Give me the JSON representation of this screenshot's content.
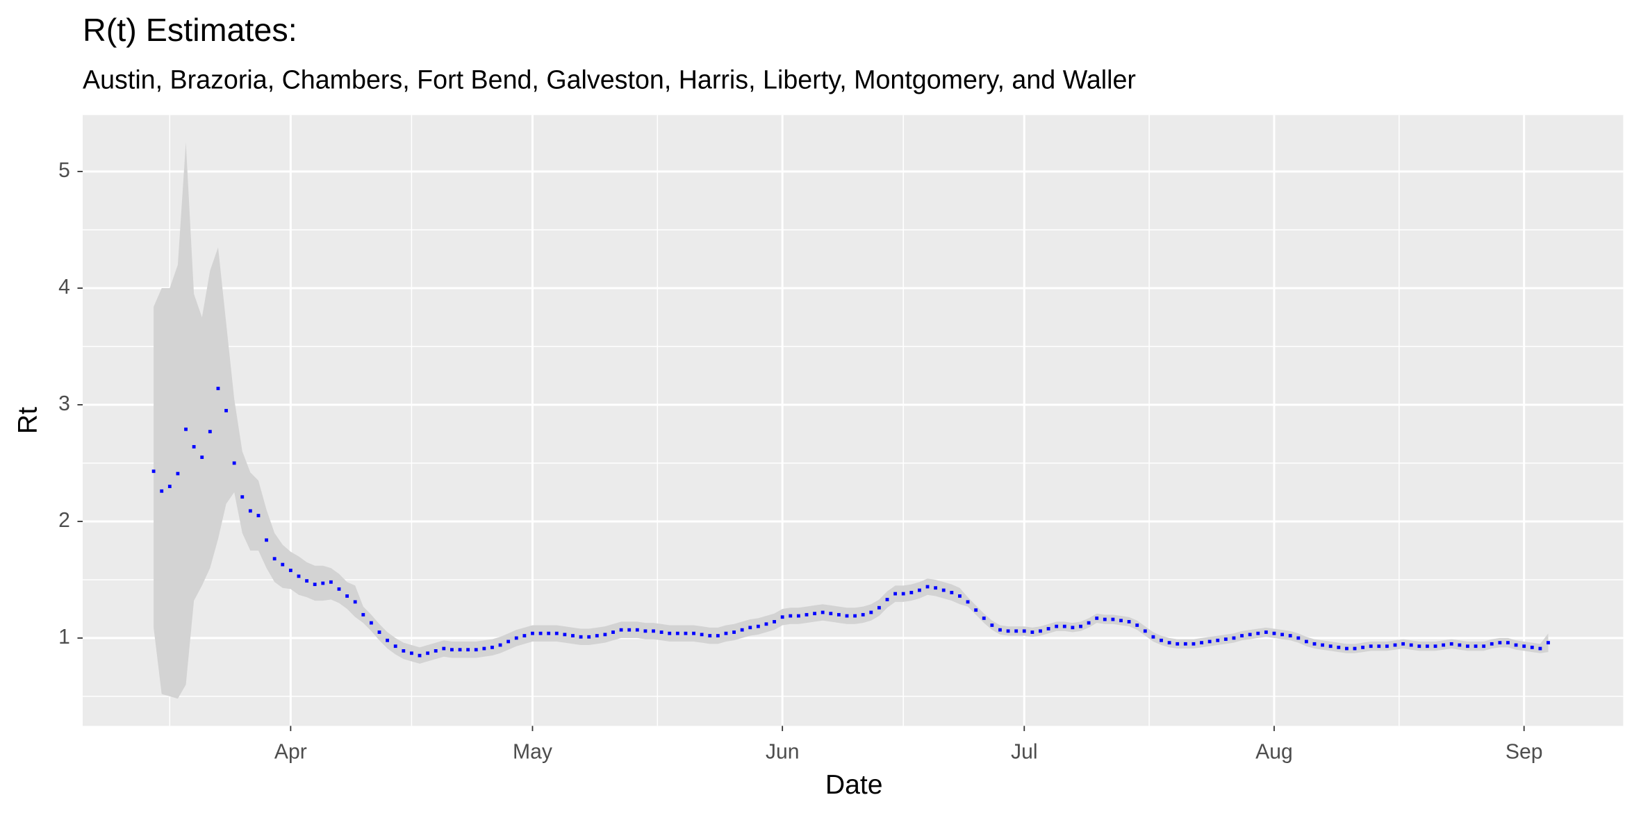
{
  "chart_data": {
    "type": "line",
    "title": "R(t) Estimates:",
    "subtitle": "Austin, Brazoria, Chambers, Fort Bend, Galveston, Harris, Liberty, Montgomery, and Waller",
    "x_label": "Date",
    "y_label": "Rt",
    "color": "#0000ff",
    "band_color": "#d3d3d3",
    "line_style": "dotted",
    "grid": true,
    "xlim": [
      66.2,
      257.3
    ],
    "xticks": [
      {
        "value": 92,
        "label": "Apr"
      },
      {
        "value": 122,
        "label": "May"
      },
      {
        "value": 153,
        "label": "Jun"
      },
      {
        "value": 183,
        "label": "Jul"
      },
      {
        "value": 214,
        "label": "Aug"
      },
      {
        "value": 245,
        "label": "Sep"
      }
    ],
    "ylim": [
      0.247,
      5.484
    ],
    "yticks": [
      1,
      2,
      3,
      4,
      5
    ],
    "x": [
      75,
      76,
      77,
      78,
      79,
      80,
      81,
      82,
      83,
      84,
      85,
      86,
      87,
      88,
      89,
      90,
      91,
      92,
      93,
      94,
      95,
      96,
      97,
      98,
      99,
      100,
      101,
      102,
      103,
      104,
      105,
      106,
      107,
      108,
      109,
      110,
      111,
      112,
      113,
      114,
      115,
      116,
      117,
      118,
      119,
      120,
      121,
      122,
      123,
      124,
      125,
      126,
      127,
      128,
      129,
      130,
      131,
      132,
      133,
      134,
      135,
      136,
      137,
      138,
      139,
      140,
      141,
      142,
      143,
      144,
      145,
      146,
      147,
      148,
      149,
      150,
      151,
      152,
      153,
      154,
      155,
      156,
      157,
      158,
      159,
      160,
      161,
      162,
      163,
      164,
      165,
      166,
      167,
      168,
      169,
      170,
      171,
      172,
      173,
      174,
      175,
      176,
      177,
      178,
      179,
      180,
      181,
      182,
      183,
      184,
      185,
      186,
      187,
      188,
      189,
      190,
      191,
      192,
      193,
      194,
      195,
      196,
      197,
      198,
      199,
      200,
      201,
      202,
      203,
      204,
      205,
      206,
      207,
      208,
      209,
      210,
      211,
      212,
      213,
      214,
      215,
      216,
      217,
      218,
      219,
      220,
      221,
      222,
      223,
      224,
      225,
      226,
      227,
      228,
      229,
      230,
      231,
      232,
      233,
      234,
      235,
      236,
      237,
      238,
      239,
      240,
      241,
      242,
      243,
      244,
      245,
      246,
      247,
      248
    ],
    "values": [
      2.43,
      2.26,
      2.3,
      2.41,
      2.79,
      2.64,
      2.55,
      2.77,
      3.14,
      2.95,
      2.5,
      2.21,
      2.09,
      2.05,
      1.84,
      1.68,
      1.63,
      1.58,
      1.53,
      1.49,
      1.46,
      1.47,
      1.48,
      1.42,
      1.36,
      1.31,
      1.2,
      1.13,
      1.05,
      0.98,
      0.93,
      0.89,
      0.87,
      0.85,
      0.87,
      0.89,
      0.91,
      0.9,
      0.9,
      0.9,
      0.9,
      0.91,
      0.92,
      0.94,
      0.97,
      1.0,
      1.02,
      1.04,
      1.04,
      1.04,
      1.04,
      1.03,
      1.02,
      1.01,
      1.01,
      1.02,
      1.03,
      1.05,
      1.07,
      1.07,
      1.07,
      1.06,
      1.06,
      1.05,
      1.04,
      1.04,
      1.04,
      1.04,
      1.03,
      1.02,
      1.02,
      1.04,
      1.05,
      1.07,
      1.09,
      1.1,
      1.12,
      1.14,
      1.18,
      1.19,
      1.19,
      1.2,
      1.21,
      1.22,
      1.21,
      1.2,
      1.19,
      1.19,
      1.2,
      1.22,
      1.26,
      1.33,
      1.38,
      1.38,
      1.39,
      1.41,
      1.44,
      1.43,
      1.41,
      1.39,
      1.36,
      1.31,
      1.24,
      1.17,
      1.11,
      1.07,
      1.06,
      1.06,
      1.06,
      1.05,
      1.06,
      1.08,
      1.1,
      1.1,
      1.09,
      1.1,
      1.13,
      1.17,
      1.16,
      1.16,
      1.15,
      1.14,
      1.11,
      1.06,
      1.01,
      0.98,
      0.96,
      0.95,
      0.95,
      0.95,
      0.96,
      0.97,
      0.98,
      0.99,
      1.0,
      1.02,
      1.03,
      1.04,
      1.05,
      1.04,
      1.03,
      1.02,
      1.0,
      0.97,
      0.95,
      0.94,
      0.93,
      0.92,
      0.91,
      0.91,
      0.92,
      0.93,
      0.93,
      0.93,
      0.94,
      0.95,
      0.94,
      0.93,
      0.93,
      0.93,
      0.94,
      0.95,
      0.94,
      0.93,
      0.93,
      0.93,
      0.95,
      0.96,
      0.96,
      0.94,
      0.93,
      0.92,
      0.91,
      0.96
    ],
    "lower": [
      1.09,
      0.52,
      0.5,
      0.48,
      0.6,
      1.32,
      1.45,
      1.6,
      1.85,
      2.15,
      2.25,
      1.9,
      1.75,
      1.75,
      1.6,
      1.48,
      1.43,
      1.42,
      1.37,
      1.35,
      1.32,
      1.32,
      1.33,
      1.3,
      1.25,
      1.18,
      1.13,
      1.06,
      0.98,
      0.91,
      0.86,
      0.82,
      0.8,
      0.78,
      0.8,
      0.82,
      0.84,
      0.83,
      0.83,
      0.83,
      0.83,
      0.84,
      0.85,
      0.87,
      0.9,
      0.93,
      0.95,
      0.97,
      0.97,
      0.97,
      0.97,
      0.96,
      0.95,
      0.94,
      0.94,
      0.95,
      0.96,
      0.98,
      1.0,
      1.0,
      1.0,
      0.99,
      0.99,
      0.98,
      0.97,
      0.97,
      0.97,
      0.97,
      0.96,
      0.95,
      0.95,
      0.97,
      0.98,
      1.0,
      1.02,
      1.03,
      1.05,
      1.07,
      1.11,
      1.12,
      1.12,
      1.13,
      1.14,
      1.15,
      1.14,
      1.13,
      1.12,
      1.12,
      1.13,
      1.15,
      1.19,
      1.26,
      1.31,
      1.31,
      1.32,
      1.34,
      1.37,
      1.36,
      1.34,
      1.32,
      1.29,
      1.27,
      1.2,
      1.13,
      1.07,
      1.03,
      1.02,
      1.02,
      1.02,
      1.01,
      1.02,
      1.04,
      1.06,
      1.06,
      1.05,
      1.06,
      1.09,
      1.13,
      1.12,
      1.12,
      1.11,
      1.1,
      1.07,
      1.02,
      0.97,
      0.94,
      0.92,
      0.91,
      0.91,
      0.91,
      0.92,
      0.93,
      0.94,
      0.95,
      0.96,
      0.98,
      0.99,
      1.0,
      1.01,
      1.0,
      0.99,
      0.98,
      0.96,
      0.93,
      0.91,
      0.9,
      0.89,
      0.88,
      0.87,
      0.87,
      0.88,
      0.89,
      0.89,
      0.89,
      0.9,
      0.91,
      0.9,
      0.89,
      0.89,
      0.89,
      0.9,
      0.91,
      0.9,
      0.89,
      0.89,
      0.89,
      0.91,
      0.92,
      0.92,
      0.9,
      0.89,
      0.88,
      0.87,
      0.88
    ],
    "upper": [
      3.84,
      4.0,
      4.0,
      4.2,
      5.25,
      3.95,
      3.75,
      4.15,
      4.35,
      3.7,
      3.05,
      2.6,
      2.42,
      2.35,
      2.1,
      1.9,
      1.8,
      1.74,
      1.7,
      1.65,
      1.62,
      1.62,
      1.6,
      1.55,
      1.48,
      1.45,
      1.27,
      1.2,
      1.12,
      1.05,
      1.0,
      0.96,
      0.94,
      0.92,
      0.94,
      0.96,
      0.98,
      0.97,
      0.97,
      0.97,
      0.97,
      0.98,
      0.99,
      1.01,
      1.04,
      1.07,
      1.09,
      1.11,
      1.11,
      1.11,
      1.11,
      1.1,
      1.09,
      1.08,
      1.08,
      1.09,
      1.1,
      1.12,
      1.14,
      1.14,
      1.14,
      1.13,
      1.13,
      1.12,
      1.11,
      1.11,
      1.11,
      1.11,
      1.1,
      1.09,
      1.09,
      1.11,
      1.12,
      1.14,
      1.16,
      1.17,
      1.19,
      1.21,
      1.25,
      1.26,
      1.26,
      1.27,
      1.28,
      1.29,
      1.28,
      1.27,
      1.26,
      1.26,
      1.27,
      1.29,
      1.33,
      1.4,
      1.45,
      1.45,
      1.46,
      1.48,
      1.51,
      1.5,
      1.48,
      1.46,
      1.43,
      1.35,
      1.28,
      1.21,
      1.15,
      1.11,
      1.1,
      1.1,
      1.1,
      1.09,
      1.1,
      1.12,
      1.14,
      1.14,
      1.13,
      1.14,
      1.17,
      1.21,
      1.2,
      1.2,
      1.19,
      1.18,
      1.15,
      1.1,
      1.05,
      1.02,
      1.0,
      0.99,
      0.99,
      0.99,
      1.0,
      1.01,
      1.02,
      1.03,
      1.04,
      1.06,
      1.07,
      1.08,
      1.09,
      1.08,
      1.07,
      1.06,
      1.04,
      1.01,
      0.99,
      0.98,
      0.97,
      0.96,
      0.95,
      0.95,
      0.96,
      0.97,
      0.97,
      0.97,
      0.98,
      0.99,
      0.98,
      0.97,
      0.97,
      0.97,
      0.98,
      0.99,
      0.98,
      0.97,
      0.97,
      0.97,
      0.99,
      1.0,
      1.0,
      0.98,
      0.97,
      0.96,
      0.95,
      1.04
    ]
  }
}
